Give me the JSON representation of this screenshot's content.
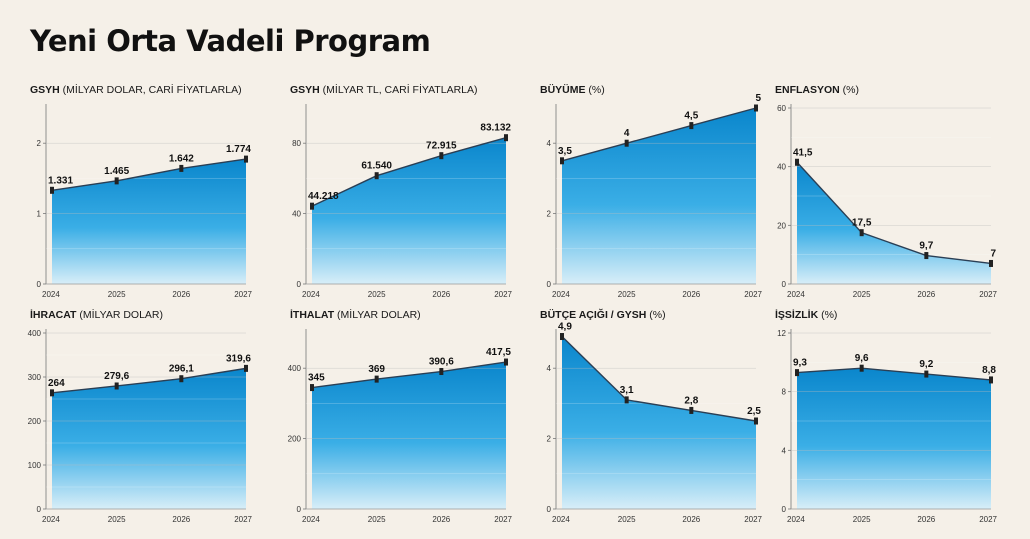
{
  "page": {
    "title": "Yeni Orta Vadeli Program"
  },
  "colors": {
    "background": "#f5f0e8",
    "area_top": "#0a86cc",
    "area_mid": "#3aaee6",
    "area_bottom": "#d8eef8",
    "line": "#2a3f55",
    "marker": "#222222",
    "grid": "#bcbcbc"
  },
  "chart_data": [
    {
      "id": "gsyh-usd",
      "type": "area",
      "title": "GSYH",
      "unit": "(MİLYAR DOLAR, CARİ FİYATLARLA)",
      "categories": [
        "2024",
        "2025",
        "2026",
        "2027"
      ],
      "values": [
        1331,
        1465,
        1642,
        1774
      ],
      "value_labels": [
        "1.331",
        "1.465",
        "1.642",
        "1.774"
      ],
      "ylim": [
        0,
        2500
      ],
      "yticks": [
        0,
        1000,
        2000
      ],
      "ytick_labels": [
        "0",
        "1",
        "2"
      ],
      "grid": true
    },
    {
      "id": "gsyh-tl",
      "type": "area",
      "title": "GSYH",
      "unit": "(MİLYAR TL, CARİ FİYATLARLA)",
      "categories": [
        "2024",
        "2025",
        "2026",
        "2027"
      ],
      "values": [
        44218,
        61540,
        72915,
        83132
      ],
      "value_labels": [
        "44.218",
        "61.540",
        "72.915",
        "83.132"
      ],
      "ylim": [
        0,
        100000
      ],
      "yticks": [
        0,
        40000,
        80000
      ],
      "ytick_labels": [
        "0",
        "40",
        "80"
      ],
      "grid": true
    },
    {
      "id": "buyume",
      "type": "area",
      "title": "BÜYÜME",
      "unit": "(%)",
      "categories": [
        "2024",
        "2025",
        "2026",
        "2027"
      ],
      "values": [
        3.5,
        4,
        4.5,
        5
      ],
      "value_labels": [
        "3,5",
        "4",
        "4,5",
        "5"
      ],
      "ylim": [
        0,
        5
      ],
      "yticks": [
        0,
        2,
        4
      ],
      "ytick_labels": [
        "0",
        "2",
        "4"
      ],
      "grid": true
    },
    {
      "id": "enflasyon",
      "type": "area",
      "title": "ENFLASYON",
      "unit": "(%)",
      "categories": [
        "2024",
        "2025",
        "2026",
        "2027"
      ],
      "values": [
        41.5,
        17.5,
        9.7,
        7
      ],
      "value_labels": [
        "41,5",
        "17,5",
        "9,7",
        "7"
      ],
      "ylim": [
        0,
        60
      ],
      "yticks": [
        0,
        20,
        40,
        60
      ],
      "ytick_labels": [
        "0",
        "20",
        "40",
        "60"
      ],
      "grid": true
    },
    {
      "id": "ihracat",
      "type": "area",
      "title": "İHRACAT",
      "unit": "(MİLYAR DOLAR)",
      "categories": [
        "2024",
        "2025",
        "2026",
        "2027"
      ],
      "values": [
        264,
        279.6,
        296.1,
        319.6
      ],
      "value_labels": [
        "264",
        "279,6",
        "296,1",
        "319,6"
      ],
      "ylim": [
        0,
        400
      ],
      "yticks": [
        0,
        100,
        200,
        300,
        400
      ],
      "ytick_labels": [
        "0",
        "100",
        "200",
        "300",
        "400"
      ],
      "grid": true
    },
    {
      "id": "ithalat",
      "type": "area",
      "title": "İTHALAT",
      "unit": "(MİLYAR DOLAR)",
      "categories": [
        "2024",
        "2025",
        "2026",
        "2027"
      ],
      "values": [
        345,
        369,
        390.6,
        417.5
      ],
      "value_labels": [
        "345",
        "369",
        "390,6",
        "417,5"
      ],
      "ylim": [
        0,
        500
      ],
      "yticks": [
        0,
        200,
        400
      ],
      "ytick_labels": [
        "0",
        "200",
        "400"
      ],
      "grid": true
    },
    {
      "id": "butce",
      "type": "area",
      "title": "BÜTÇE AÇIĞI / GYSH",
      "unit": "(%)",
      "categories": [
        "2024",
        "2025",
        "2026",
        "2027"
      ],
      "values": [
        4.9,
        3.1,
        2.8,
        2.5
      ],
      "value_labels": [
        "4,9",
        "3,1",
        "2,8",
        "2,5"
      ],
      "ylim": [
        0,
        5
      ],
      "yticks": [
        0,
        2,
        4
      ],
      "ytick_labels": [
        "0",
        "2",
        "4"
      ],
      "grid": true
    },
    {
      "id": "issizlik",
      "type": "area",
      "title": "İŞSİZLİK",
      "unit": "(%)",
      "categories": [
        "2024",
        "2025",
        "2026",
        "2027"
      ],
      "values": [
        9.3,
        9.6,
        9.2,
        8.8
      ],
      "value_labels": [
        "9,3",
        "9,6",
        "9,2",
        "8,8"
      ],
      "ylim": [
        0,
        12
      ],
      "yticks": [
        0,
        4,
        8,
        12
      ],
      "ytick_labels": [
        "0",
        "4",
        "8",
        "12"
      ],
      "grid": true
    }
  ]
}
